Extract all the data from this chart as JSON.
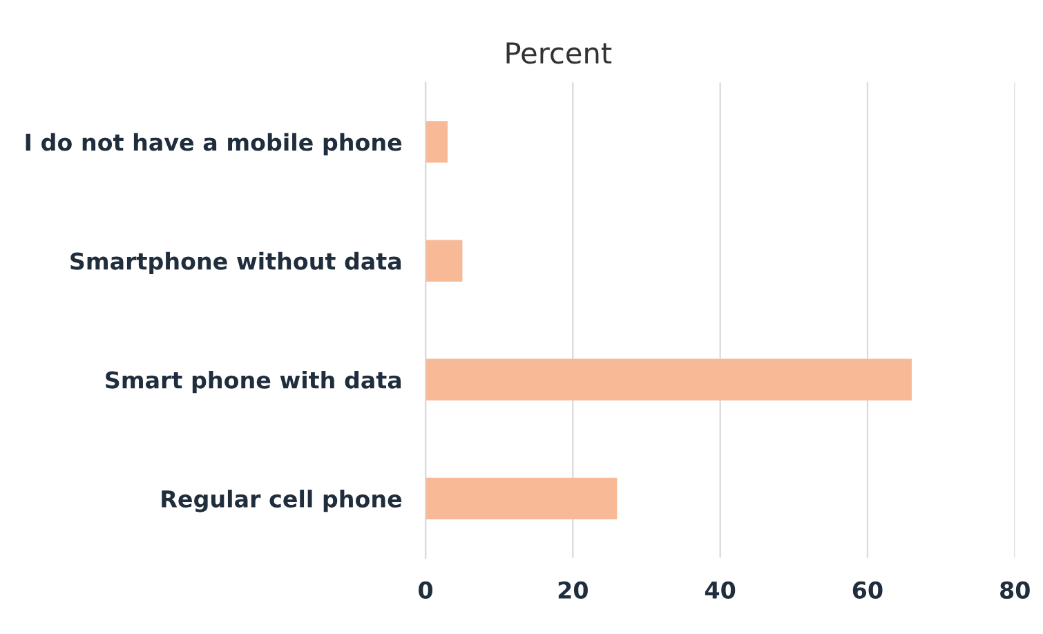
{
  "chart_data": {
    "type": "bar",
    "orientation": "horizontal",
    "title": "Percent",
    "categories": [
      "I do not have a mobile phone",
      "Smartphone without data",
      "Smart phone with data",
      "Regular cell phone"
    ],
    "values": [
      3,
      5,
      66,
      26
    ],
    "color": "#f8b996",
    "xlim": [
      0,
      80
    ],
    "xticks": [
      0,
      20,
      40,
      60,
      80
    ],
    "grid": "x",
    "legend": false
  }
}
